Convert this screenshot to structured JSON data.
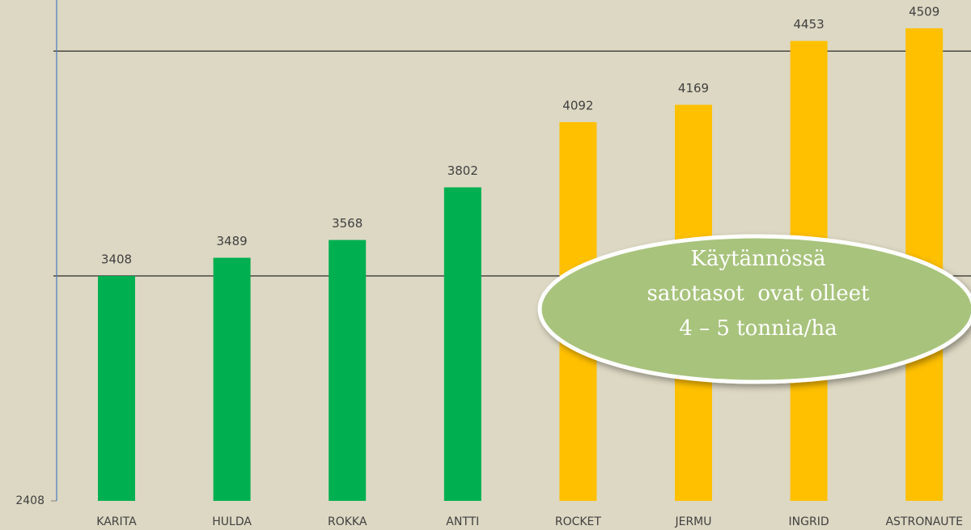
{
  "chart_data": {
    "type": "bar",
    "categories": [
      "KARITA",
      "HULDA",
      "ROKKA",
      "ANTTI",
      "ROCKET",
      "JERMU",
      "INGRID",
      "ASTRONAUTE"
    ],
    "values": [
      3408,
      3489,
      3568,
      3802,
      4092,
      4169,
      4453,
      4509
    ],
    "colors": [
      "#00b050",
      "#00b050",
      "#00b050",
      "#00b050",
      "#ffc000",
      "#ffc000",
      "#ffc000",
      "#ffc000"
    ],
    "ylim": [
      2408,
      4635
    ],
    "yticks": [
      2408
    ],
    "grid_lines": [
      3408,
      4408
    ],
    "grid": true,
    "annotation": [
      "Käytännössä",
      "satotasot  ovat olleet",
      "4 – 5 tonnia/ha"
    ]
  }
}
